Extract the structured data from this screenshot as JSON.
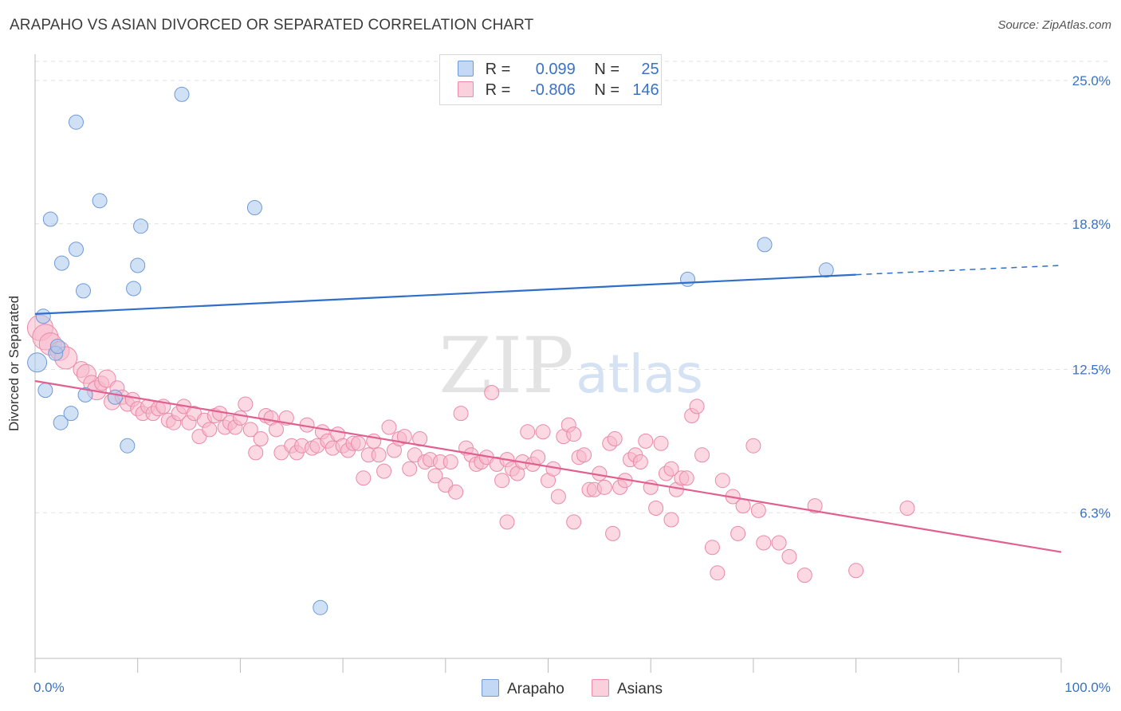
{
  "header": {
    "title": "ARAPAHO VS ASIAN DIVORCED OR SEPARATED CORRELATION CHART",
    "source": "Source: ZipAtlas.com"
  },
  "legend": {
    "series": [
      {
        "r_label": "R =",
        "r_value": "0.099",
        "n_label": "N =",
        "n_value": "25"
      },
      {
        "r_label": "R =",
        "r_value": "-0.806",
        "n_label": "N =",
        "n_value": "146"
      }
    ]
  },
  "watermark": {
    "zip": "ZIP",
    "atlas": "atlas"
  },
  "chart_data": {
    "type": "scatter",
    "title": "ARAPAHO VS ASIAN DIVORCED OR SEPARATED CORRELATION CHART",
    "ylabel": "Divorced or Separated",
    "xlabel": "",
    "xlim": [
      0,
      100
    ],
    "ylim": [
      0,
      26
    ],
    "x_tick_labels": [
      "0.0%",
      "100.0%"
    ],
    "y_ticks": [
      {
        "value": 6.3,
        "label": "6.3%"
      },
      {
        "value": 12.5,
        "label": "12.5%"
      },
      {
        "value": 18.8,
        "label": "18.8%"
      },
      {
        "value": 25.0,
        "label": "25.0%"
      }
    ],
    "grid": "horizontal dashed",
    "legend_placement": "top-center",
    "series": [
      {
        "name": "Arapaho",
        "color": "#aac8ee",
        "stroke": "#6f9ad6",
        "trend_color": "#2f6fc9",
        "trend": {
          "x0": 0,
          "y0": 14.9,
          "x1": 80,
          "y1": 16.6,
          "dash_to_x": 100,
          "dash_to_y": 17.0
        },
        "points": [
          [
            0.2,
            12.8,
            12
          ],
          [
            0.8,
            14.8,
            9
          ],
          [
            1.0,
            11.6,
            9
          ],
          [
            1.5,
            19.0,
            9
          ],
          [
            2.5,
            10.2,
            9
          ],
          [
            2.0,
            13.2,
            9
          ],
          [
            2.2,
            13.5,
            9
          ],
          [
            2.6,
            17.1,
            9
          ],
          [
            3.5,
            10.6,
            9
          ],
          [
            4.0,
            17.7,
            9
          ],
          [
            4.9,
            11.4,
            9
          ],
          [
            4.7,
            15.9,
            9
          ],
          [
            4.0,
            23.2,
            9
          ],
          [
            6.3,
            19.8,
            9
          ],
          [
            7.8,
            11.3,
            9
          ],
          [
            9.0,
            9.2,
            9
          ],
          [
            9.6,
            16.0,
            9
          ],
          [
            10.0,
            17.0,
            9
          ],
          [
            10.3,
            18.7,
            9
          ],
          [
            14.3,
            24.4,
            9
          ],
          [
            21.4,
            19.5,
            9
          ],
          [
            27.8,
            2.2,
            9
          ],
          [
            63.6,
            16.4,
            9
          ],
          [
            71.1,
            17.9,
            9
          ],
          [
            77.1,
            16.8,
            9
          ]
        ]
      },
      {
        "name": "Asians",
        "color": "#f7b8cb",
        "stroke": "#e98aa8",
        "trend_color": "#e0608f",
        "trend": {
          "x0": 0,
          "y0": 12.0,
          "x1": 100,
          "y1": 4.6
        },
        "points": [
          [
            0.5,
            14.3,
            16
          ],
          [
            1.0,
            13.9,
            16
          ],
          [
            1.5,
            13.6,
            14
          ],
          [
            2.4,
            13.3,
            12
          ],
          [
            3.0,
            13.0,
            14
          ],
          [
            4.5,
            12.5,
            10
          ],
          [
            5.0,
            12.3,
            12
          ],
          [
            5.5,
            11.9,
            10
          ],
          [
            6.0,
            11.6,
            12
          ],
          [
            6.5,
            11.9,
            9
          ],
          [
            7.0,
            12.1,
            11
          ],
          [
            7.5,
            11.1,
            10
          ],
          [
            8.0,
            11.7,
            9
          ],
          [
            8.5,
            11.3,
            9
          ],
          [
            9.0,
            11.0,
            9
          ],
          [
            9.5,
            11.2,
            9
          ],
          [
            10.0,
            10.8,
            9
          ],
          [
            10.5,
            10.6,
            9
          ],
          [
            11.0,
            10.9,
            9
          ],
          [
            11.5,
            10.6,
            9
          ],
          [
            12.0,
            10.8,
            9
          ],
          [
            12.5,
            10.9,
            9
          ],
          [
            13.0,
            10.3,
            9
          ],
          [
            13.5,
            10.2,
            9
          ],
          [
            14.0,
            10.6,
            9
          ],
          [
            14.5,
            10.9,
            9
          ],
          [
            15.0,
            10.2,
            9
          ],
          [
            15.5,
            10.6,
            9
          ],
          [
            16.0,
            9.6,
            9
          ],
          [
            16.5,
            10.3,
            9
          ],
          [
            17.0,
            9.9,
            9
          ],
          [
            17.5,
            10.5,
            9
          ],
          [
            18.0,
            10.6,
            9
          ],
          [
            18.5,
            10.0,
            9
          ],
          [
            19.0,
            10.2,
            9
          ],
          [
            19.5,
            10.0,
            9
          ],
          [
            20.0,
            10.4,
            9
          ],
          [
            20.5,
            11.0,
            9
          ],
          [
            21.0,
            9.9,
            9
          ],
          [
            21.5,
            8.9,
            9
          ],
          [
            22.0,
            9.5,
            9
          ],
          [
            22.5,
            10.5,
            9
          ],
          [
            23.0,
            10.4,
            9
          ],
          [
            23.5,
            9.9,
            9
          ],
          [
            24.0,
            8.9,
            9
          ],
          [
            24.5,
            10.4,
            9
          ],
          [
            25.0,
            9.2,
            9
          ],
          [
            25.5,
            8.9,
            9
          ],
          [
            26.0,
            9.2,
            9
          ],
          [
            26.5,
            10.1,
            9
          ],
          [
            27.0,
            9.1,
            9
          ],
          [
            27.5,
            9.2,
            9
          ],
          [
            28.0,
            9.8,
            9
          ],
          [
            28.5,
            9.4,
            9
          ],
          [
            29.0,
            9.1,
            9
          ],
          [
            29.5,
            9.7,
            9
          ],
          [
            30.0,
            9.2,
            9
          ],
          [
            30.5,
            9.0,
            9
          ],
          [
            31.0,
            9.3,
            9
          ],
          [
            31.5,
            9.3,
            9
          ],
          [
            32.0,
            7.8,
            9
          ],
          [
            32.5,
            8.8,
            9
          ],
          [
            33.0,
            9.4,
            9
          ],
          [
            33.5,
            8.8,
            9
          ],
          [
            34.0,
            8.1,
            9
          ],
          [
            34.5,
            10.0,
            9
          ],
          [
            35.0,
            9.0,
            9
          ],
          [
            35.5,
            9.5,
            9
          ],
          [
            36.0,
            9.6,
            9
          ],
          [
            36.5,
            8.2,
            9
          ],
          [
            37.0,
            8.8,
            9
          ],
          [
            37.5,
            9.5,
            9
          ],
          [
            38.0,
            8.5,
            9
          ],
          [
            38.5,
            8.6,
            9
          ],
          [
            39.0,
            7.9,
            9
          ],
          [
            39.5,
            8.5,
            9
          ],
          [
            40.0,
            7.5,
            9
          ],
          [
            40.5,
            8.5,
            9
          ],
          [
            41.0,
            7.2,
            9
          ],
          [
            41.5,
            10.6,
            9
          ],
          [
            42.0,
            9.1,
            9
          ],
          [
            42.5,
            8.8,
            9
          ],
          [
            43.0,
            8.4,
            9
          ],
          [
            43.5,
            8.5,
            9
          ],
          [
            44.0,
            8.7,
            9
          ],
          [
            44.5,
            11.5,
            9
          ],
          [
            45.0,
            8.4,
            9
          ],
          [
            45.5,
            7.7,
            9
          ],
          [
            46.0,
            8.6,
            9
          ],
          [
            46.5,
            8.2,
            9
          ],
          [
            47.0,
            8.0,
            9
          ],
          [
            47.5,
            8.5,
            9
          ],
          [
            48.0,
            9.8,
            9
          ],
          [
            48.5,
            8.4,
            9
          ],
          [
            49.0,
            8.7,
            9
          ],
          [
            49.5,
            9.8,
            9
          ],
          [
            50.0,
            7.7,
            9
          ],
          [
            50.5,
            8.2,
            9
          ],
          [
            51.0,
            7.0,
            9
          ],
          [
            51.5,
            9.6,
            9
          ],
          [
            52.0,
            10.1,
            9
          ],
          [
            52.5,
            9.7,
            9
          ],
          [
            53.0,
            8.7,
            9
          ],
          [
            53.5,
            8.8,
            9
          ],
          [
            54.0,
            7.3,
            9
          ],
          [
            54.5,
            7.3,
            9
          ],
          [
            55.0,
            8.0,
            9
          ],
          [
            55.5,
            7.4,
            9
          ],
          [
            56.0,
            9.3,
            9
          ],
          [
            56.5,
            9.5,
            9
          ],
          [
            57.0,
            7.4,
            9
          ],
          [
            57.5,
            7.7,
            9
          ],
          [
            58.0,
            8.6,
            9
          ],
          [
            58.5,
            8.8,
            9
          ],
          [
            59.0,
            8.5,
            9
          ],
          [
            59.5,
            9.4,
            9
          ],
          [
            60.0,
            7.4,
            9
          ],
          [
            60.5,
            6.5,
            9
          ],
          [
            61.0,
            9.3,
            9
          ],
          [
            61.5,
            8.0,
            9
          ],
          [
            62.0,
            8.2,
            9
          ],
          [
            62.5,
            7.3,
            9
          ],
          [
            63.0,
            7.8,
            9
          ],
          [
            63.5,
            7.8,
            9
          ],
          [
            64.0,
            10.5,
            9
          ],
          [
            64.5,
            10.9,
            9
          ],
          [
            65.0,
            8.8,
            9
          ],
          [
            66.0,
            4.8,
            9
          ],
          [
            67.0,
            7.7,
            9
          ],
          [
            68.0,
            7.0,
            9
          ],
          [
            68.5,
            5.4,
            9
          ],
          [
            69.0,
            6.6,
            9
          ],
          [
            70.0,
            9.2,
            9
          ],
          [
            71.0,
            5.0,
            9
          ],
          [
            72.5,
            5.0,
            9
          ],
          [
            73.5,
            4.4,
            9
          ],
          [
            75.0,
            3.6,
            9
          ],
          [
            76.0,
            6.6,
            9
          ],
          [
            52.5,
            5.9,
            9
          ],
          [
            46.0,
            5.9,
            9
          ],
          [
            56.3,
            5.4,
            9
          ],
          [
            62.0,
            6.0,
            9
          ],
          [
            66.5,
            3.7,
            9
          ],
          [
            70.5,
            6.4,
            9
          ],
          [
            80.0,
            3.8,
            9
          ],
          [
            85.0,
            6.5,
            9
          ]
        ]
      }
    ]
  }
}
